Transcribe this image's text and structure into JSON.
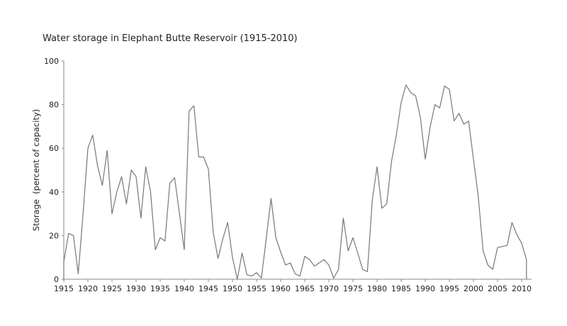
{
  "chart_data": {
    "type": "line",
    "title": "Water storage in Elephant Butte Reservoir (1915-2010)",
    "xlabel": "",
    "ylabel": "Storage  (percent of capacity)",
    "xlim": [
      1915,
      2012
    ],
    "ylim": [
      0,
      100
    ],
    "grid": false,
    "x_ticks": [
      "1915",
      "1920",
      "1925",
      "1930",
      "1935",
      "1940",
      "1945",
      "1950",
      "1955",
      "1960",
      "1965",
      "1970",
      "1975",
      "1980",
      "1985",
      "1990",
      "1995",
      "2000",
      "2005",
      "2010"
    ],
    "y_ticks": [
      "0",
      "20",
      "40",
      "60",
      "80",
      "100"
    ],
    "series": [
      {
        "name": "Storage",
        "color": "#777777",
        "x": [
          1915,
          1915,
          1916,
          1917,
          1918,
          1919,
          1920,
          1921,
          1922,
          1923,
          1924,
          1925,
          1926,
          1927,
          1928,
          1929,
          1930,
          1931,
          1932,
          1933,
          1934,
          1935,
          1936,
          1937,
          1938,
          1939,
          1940,
          1941,
          1942,
          1943,
          1944,
          1945,
          1946,
          1947,
          1948,
          1949,
          1950,
          1951,
          1952,
          1953,
          1954,
          1955,
          1956,
          1957,
          1958,
          1959,
          1960,
          1961,
          1962,
          1963,
          1964,
          1965,
          1966,
          1967,
          1968,
          1969,
          1970,
          1971,
          1972,
          1973,
          1974,
          1975,
          1976,
          1977,
          1978,
          1979,
          1980,
          1981,
          1982,
          1983,
          1984,
          1985,
          1986,
          1987,
          1988,
          1989,
          1990,
          1991,
          1992,
          1993,
          1994,
          1995,
          1996,
          1997,
          1998,
          1999,
          2000,
          2001,
          2002,
          2003,
          2004,
          2005,
          2006,
          2007,
          2008,
          2009,
          2010,
          2011,
          2011
        ],
        "values": [
          0,
          8,
          21,
          20,
          2.5,
          30,
          60,
          66,
          52,
          43,
          59,
          30,
          40,
          47,
          34.5,
          50,
          47,
          28,
          51.5,
          40,
          13.5,
          19,
          17.5,
          44,
          46.5,
          30,
          13.5,
          77,
          79.5,
          56,
          56,
          50.5,
          21.5,
          9.5,
          18.5,
          26,
          10,
          0,
          12,
          2,
          1.5,
          3,
          0.5,
          18.5,
          37,
          19,
          12.5,
          6.5,
          7.5,
          2.5,
          1.5,
          10.5,
          9,
          6,
          7.5,
          9,
          6.5,
          0.5,
          4.5,
          28,
          13,
          19,
          12,
          4.5,
          3.5,
          36,
          51.5,
          32.5,
          34.5,
          54,
          66,
          81,
          89,
          85.5,
          84,
          74,
          55,
          69.5,
          80,
          78.5,
          88.5,
          87,
          72.5,
          76,
          71,
          72.5,
          55,
          38,
          13,
          6.5,
          4.5,
          14.5,
          15,
          15.5,
          26,
          20.5,
          16.5,
          9,
          0
        ]
      }
    ]
  }
}
